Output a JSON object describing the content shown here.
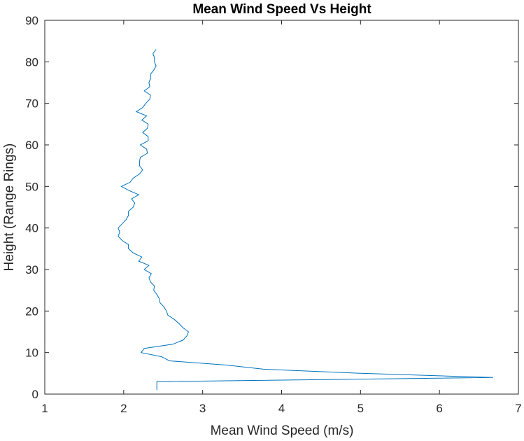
{
  "chart_data": {
    "type": "line",
    "title": "Mean Wind Speed Vs Height",
    "xlabel": "Mean Wind Speed (m/s)",
    "ylabel": "Height (Range Rings)",
    "xlim": [
      1,
      7
    ],
    "ylim": [
      0,
      90
    ],
    "xticks": [
      1,
      2,
      3,
      4,
      5,
      6,
      7
    ],
    "yticks": [
      0,
      10,
      20,
      30,
      40,
      50,
      60,
      70,
      80,
      90
    ],
    "grid": false,
    "legend": "none",
    "line_color": "#0072BD",
    "series": [
      {
        "x": [
          2.42,
          2.42,
          2.42,
          6.68,
          5.0,
          3.77,
          3.3,
          2.58,
          2.48,
          2.22,
          2.26,
          2.62,
          2.75,
          2.8,
          2.82,
          2.75,
          2.7,
          2.64,
          2.56,
          2.54,
          2.51,
          2.46,
          2.45,
          2.42,
          2.38,
          2.39,
          2.34,
          2.32,
          2.35,
          2.26,
          2.32,
          2.19,
          2.23,
          2.12,
          2.06,
          2.06,
          1.98,
          1.93,
          1.95,
          1.93,
          1.98,
          2.03,
          2.06,
          2.06,
          2.12,
          2.14,
          2.1,
          2.19,
          2.07,
          1.97,
          2.08,
          2.12,
          2.2,
          2.24,
          2.2,
          2.2,
          2.21,
          2.3,
          2.29,
          2.21,
          2.31,
          2.31,
          2.24,
          2.3,
          2.31,
          2.23,
          2.29,
          2.16,
          2.24,
          2.28,
          2.33,
          2.34,
          2.26,
          2.33,
          2.32,
          2.34,
          2.34,
          2.38,
          2.41,
          2.39,
          2.39,
          2.37,
          2.41
        ],
        "y": [
          1,
          2,
          3,
          4,
          5,
          6,
          7,
          8,
          9,
          10,
          11,
          12,
          13,
          14,
          15,
          16,
          17,
          18,
          19,
          20,
          21,
          22,
          23,
          24,
          25,
          26,
          27,
          28,
          29,
          30,
          31,
          32,
          33,
          34,
          35,
          36,
          37,
          38,
          39,
          40,
          41,
          42,
          43,
          44,
          45,
          46,
          47,
          48,
          49,
          50,
          51,
          52,
          53,
          54,
          55,
          56,
          57,
          58,
          59,
          60,
          61,
          62,
          63,
          64,
          65,
          66,
          67,
          68,
          69,
          70,
          71,
          72,
          73,
          74,
          75,
          76,
          77,
          78,
          79,
          80,
          81,
          82,
          83
        ]
      }
    ]
  }
}
